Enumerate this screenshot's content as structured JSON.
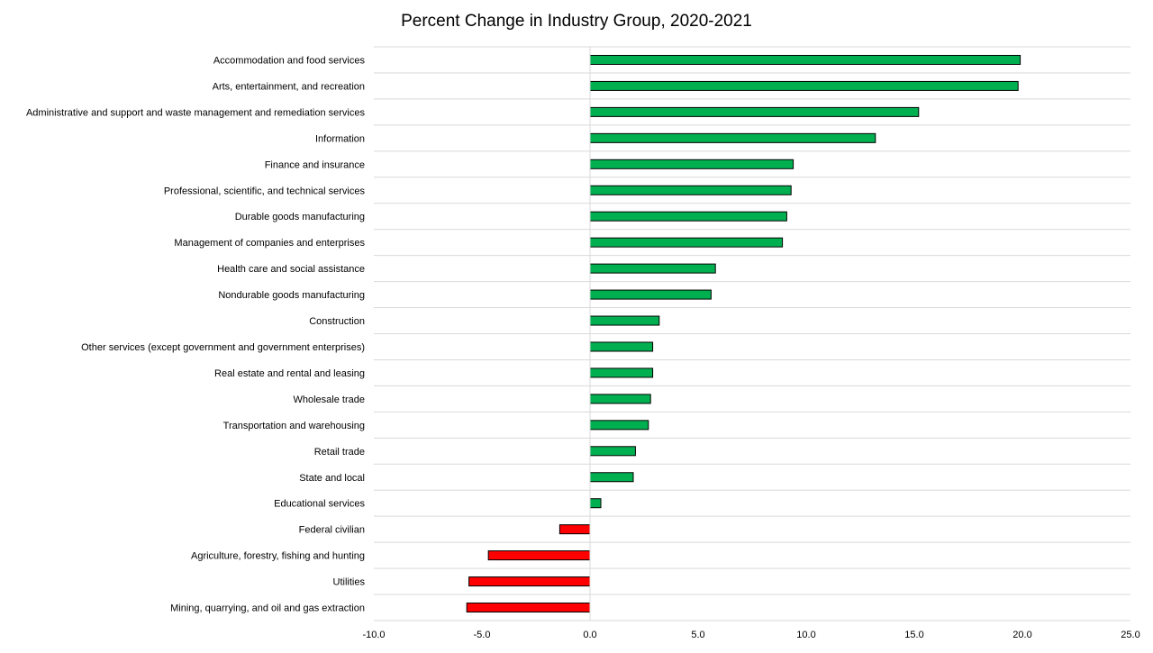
{
  "chart_data": {
    "type": "bar",
    "orientation": "horizontal",
    "title": "Percent Change in Industry Group, 2020-2021",
    "xlabel": "",
    "ylabel": "",
    "xlim": [
      -10,
      25
    ],
    "x_ticks": [
      "-10.0",
      "-5.0",
      "0.0",
      "5.0",
      "10.0",
      "15.0",
      "20.0",
      "25.0"
    ],
    "grid": "horizontal",
    "colors": {
      "positive": "#00b050",
      "negative": "#ff0000",
      "bar_border": "#000000",
      "grid": "#d9d9d9"
    },
    "categories": [
      "Accommodation and food services",
      "Arts, entertainment, and recreation",
      "Administrative and support and waste management and remediation services",
      "Information",
      "Finance and insurance",
      "Professional, scientific, and technical services",
      "Durable goods manufacturing",
      "Management of companies and enterprises",
      "Health care and social assistance",
      "Nondurable goods manufacturing",
      "Construction",
      "Other services (except government and government enterprises)",
      "Real estate and rental and leasing",
      "Wholesale trade",
      "Transportation and warehousing",
      "Retail trade",
      "State and local",
      "Educational services",
      "Federal civilian",
      "Agriculture, forestry, fishing and hunting",
      "Utilities",
      "Mining, quarrying, and oil and gas extraction"
    ],
    "values": [
      19.9,
      19.8,
      15.2,
      13.2,
      9.4,
      9.3,
      9.1,
      8.9,
      5.8,
      5.6,
      3.2,
      2.9,
      2.9,
      2.8,
      2.7,
      2.1,
      2.0,
      0.5,
      -1.4,
      -4.7,
      -5.6,
      -5.7
    ]
  }
}
